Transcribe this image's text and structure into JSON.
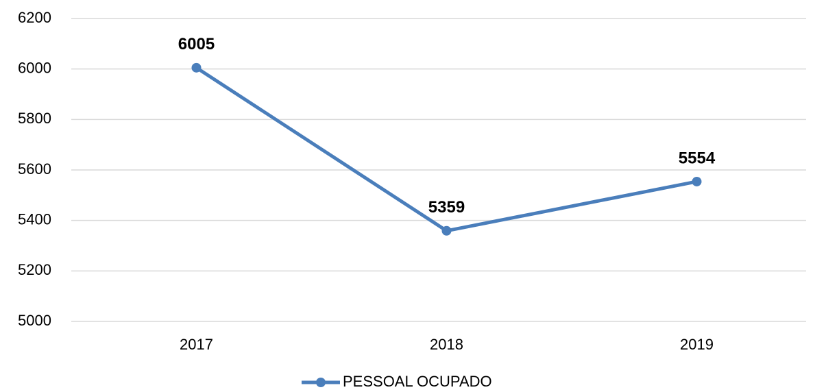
{
  "chart_data": {
    "type": "line",
    "categories": [
      "2017",
      "2018",
      "2019"
    ],
    "series": [
      {
        "name": "PESSOAL OCUPADO",
        "color": "#4a7ebb",
        "values": [
          6005,
          5359,
          5554
        ]
      }
    ],
    "ylim": [
      5000,
      6200
    ],
    "yticks": [
      5000,
      5200,
      5400,
      5600,
      5800,
      6000,
      6200
    ],
    "grid": true,
    "legend": "bottom"
  }
}
